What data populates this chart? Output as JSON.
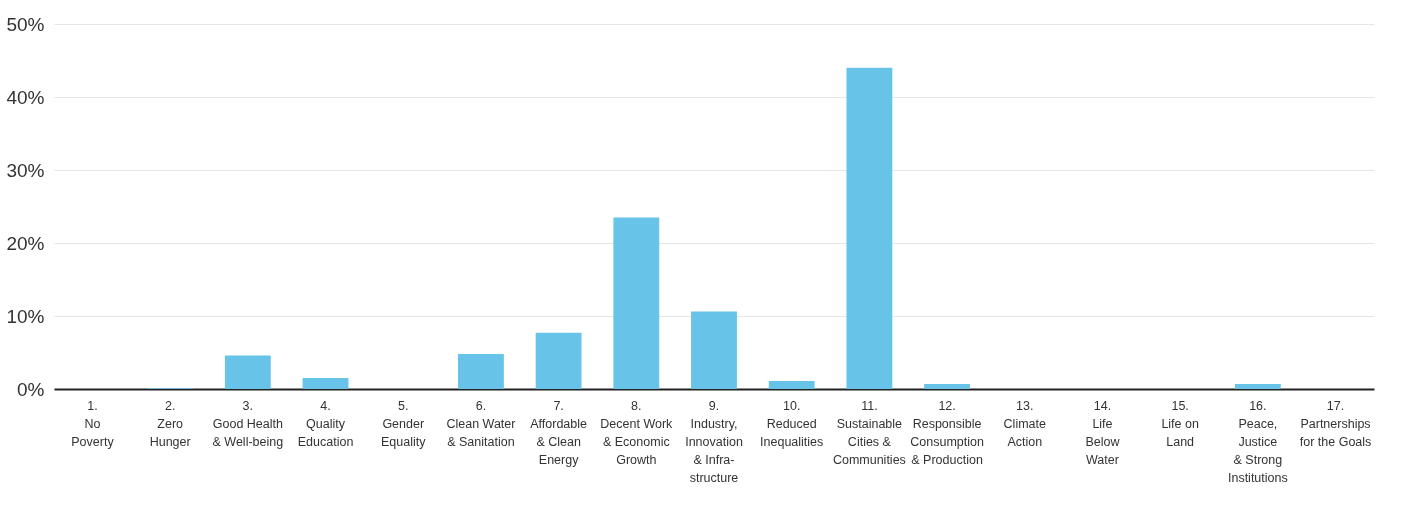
{
  "chart_data": {
    "type": "bar",
    "categories": [
      "1.\nNo\nPoverty",
      "2.\nZero\nHunger",
      "3.\nGood Health\n& Well-being",
      "4.\nQuality\nEducation",
      "5.\nGender\nEquality",
      "6.\nClean Water\n& Sanitation",
      "7.\nAffordable\n& Clean\nEnergy",
      "8.\nDecent Work\n& Economic\nGrowth",
      "9.\nIndustry,\nInnovation\n& Infra-\nstructure",
      "10.\nReduced\nInequalities",
      "11.\nSustainable\nCities &\nCommunities",
      "12.\nResponsible\nConsumption\n& Production",
      "13.\nClimate\nAction",
      "14.\nLife\nBelow\nWater",
      "15.\nLife on\nLand",
      "16.\nPeace,\nJustice\n& Strong\nInstitutions",
      "17.\nPartnerships\nfor the Goals"
    ],
    "values": [
      0,
      0.1,
      4.6,
      1.5,
      0,
      4.8,
      7.7,
      23.5,
      10.6,
      1.1,
      44.0,
      0.7,
      0,
      0,
      0,
      0.7,
      0
    ],
    "color": "#67c3e8",
    "ylim": [
      0,
      50
    ],
    "yticks": [
      {
        "value": 0,
        "label": "0%"
      },
      {
        "value": 10,
        "label": "10%"
      },
      {
        "value": 20,
        "label": "20%"
      },
      {
        "value": 30,
        "label": "30%"
      },
      {
        "value": 40,
        "label": "40%"
      },
      {
        "value": 50,
        "label": "50%"
      }
    ],
    "grid": "y"
  }
}
